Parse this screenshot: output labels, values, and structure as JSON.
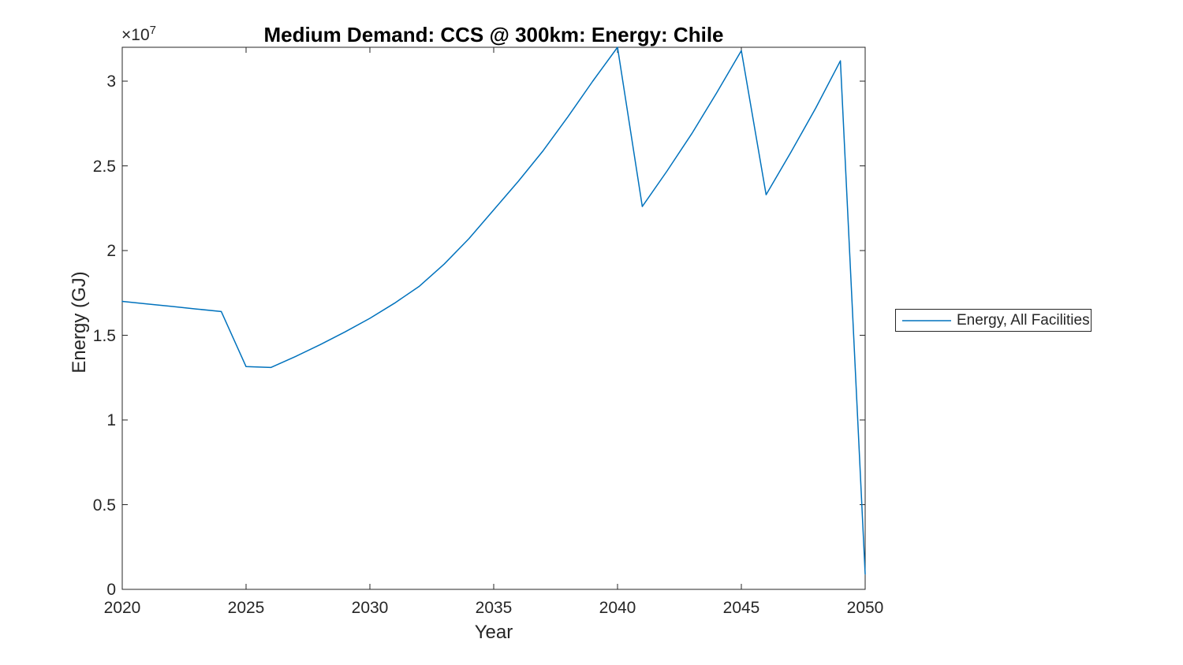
{
  "chart_data": {
    "type": "line",
    "title": "Medium Demand: CCS @ 300km: Energy: Chile",
    "xlabel": "Year",
    "ylabel": "Energy (GJ)",
    "y_axis_offset": {
      "base": "×10",
      "exponent": "7"
    },
    "xlim": [
      2020,
      2050
    ],
    "ylim": [
      0,
      32000000
    ],
    "xticks": [
      2020,
      2025,
      2030,
      2035,
      2040,
      2045,
      2050
    ],
    "yticks": [
      0,
      5000000,
      10000000,
      15000000,
      20000000,
      25000000,
      30000000
    ],
    "ytick_labels": [
      "0",
      "0.5",
      "1",
      "1.5",
      "2",
      "2.5",
      "3"
    ],
    "grid": false,
    "legend_position": "right-outside",
    "axis_color": "#262626",
    "x": [
      2020,
      2021,
      2022,
      2023,
      2024,
      2025,
      2026,
      2027,
      2028,
      2029,
      2030,
      2031,
      2032,
      2033,
      2034,
      2035,
      2036,
      2037,
      2038,
      2039,
      2040,
      2041,
      2042,
      2043,
      2044,
      2045,
      2046,
      2047,
      2048,
      2049,
      2050
    ],
    "series": [
      {
        "name": "Energy, All Facilities",
        "color": "#0072BD",
        "values": [
          17000000,
          16850000,
          16700000,
          16550000,
          16400000,
          13150000,
          13100000,
          13750000,
          14450000,
          15200000,
          16000000,
          16900000,
          17900000,
          19200000,
          20700000,
          22400000,
          24100000,
          25900000,
          27900000,
          30000000,
          32000000,
          22600000,
          24700000,
          26900000,
          29300000,
          31800000,
          23300000,
          25800000,
          28400000,
          31200000,
          900000
        ]
      }
    ]
  }
}
